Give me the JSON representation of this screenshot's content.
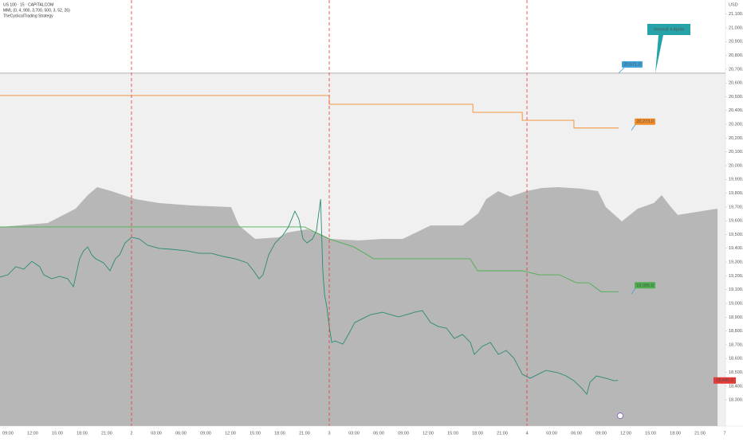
{
  "chart_data": {
    "type": "line",
    "title": "US 100 · 15 · CAPITALCOM",
    "subtitle": "MML (0, 4, 900, 3,700, 500, 3, 52, 26)",
    "strategy": "TheCyclicalTrading Strategy",
    "currency": "USD",
    "xlim": [
      -0.32,
      29.03
    ],
    "ylim": [
      18110,
      21202
    ],
    "xticks": [
      {
        "value": 0,
        "label": "09:00"
      },
      {
        "value": 1,
        "label": "12:00"
      },
      {
        "value": 2,
        "label": "15:00"
      },
      {
        "value": 3,
        "label": "18:00"
      },
      {
        "value": 4,
        "label": "21:00"
      },
      {
        "value": 5,
        "label": "2"
      },
      {
        "value": 6,
        "label": "03:00"
      },
      {
        "value": 7,
        "label": "06:00"
      },
      {
        "value": 8,
        "label": "09:00"
      },
      {
        "value": 9,
        "label": "12:00"
      },
      {
        "value": 10,
        "label": "15:00"
      },
      {
        "value": 11,
        "label": "18:00"
      },
      {
        "value": 12,
        "label": "21:00"
      },
      {
        "value": 13,
        "label": "3"
      },
      {
        "value": 14,
        "label": "03:00"
      },
      {
        "value": 15,
        "label": "06:00"
      },
      {
        "value": 16,
        "label": "09:00"
      },
      {
        "value": 17,
        "label": "12:00"
      },
      {
        "value": 18,
        "label": "15:00"
      },
      {
        "value": 19,
        "label": "18:00"
      },
      {
        "value": 20,
        "label": "21:00"
      },
      {
        "value": 21,
        "label": "4"
      },
      {
        "value": 22,
        "label": "03:00"
      },
      {
        "value": 23,
        "label": "06:00"
      },
      {
        "value": 24,
        "label": "09:00"
      },
      {
        "value": 25,
        "label": "12:00"
      },
      {
        "value": 26,
        "label": "15:00"
      },
      {
        "value": 27,
        "label": "18:00"
      },
      {
        "value": 28,
        "label": "21:00"
      },
      {
        "value": 29,
        "label": "7"
      }
    ],
    "yticks": [
      {
        "value": 18300,
        "label": "18,300.0"
      },
      {
        "value": 18400,
        "label": "18,400.0"
      },
      {
        "value": 18500,
        "label": "18,500.0"
      },
      {
        "value": 18600,
        "label": "18,600.0"
      },
      {
        "value": 18700,
        "label": "18,700.0"
      },
      {
        "value": 18800,
        "label": "18,800.0"
      },
      {
        "value": 18900,
        "label": "18,900.0"
      },
      {
        "value": 19000,
        "label": "19,000.0"
      },
      {
        "value": 19100,
        "label": "19,100.0"
      },
      {
        "value": 19200,
        "label": "19,200.0"
      },
      {
        "value": 19300,
        "label": "19,300.0"
      },
      {
        "value": 19400,
        "label": "19,400.0"
      },
      {
        "value": 19500,
        "label": "19,500.0"
      },
      {
        "value": 19600,
        "label": "19,600.0"
      },
      {
        "value": 19700,
        "label": "19,700.0"
      },
      {
        "value": 19800,
        "label": "19,800.0"
      },
      {
        "value": 19900,
        "label": "19,900.0"
      },
      {
        "value": 20000,
        "label": "20,000.0"
      },
      {
        "value": 20100,
        "label": "20,100.0"
      },
      {
        "value": 20200,
        "label": "20,200.0"
      },
      {
        "value": 20300,
        "label": "20,300.0"
      },
      {
        "value": 20400,
        "label": "20,400.0"
      },
      {
        "value": 20500,
        "label": "20,500.0"
      },
      {
        "value": 20600,
        "label": "20,600.0"
      },
      {
        "value": 20700,
        "label": "20,700.0"
      },
      {
        "value": 20800,
        "label": "20,800.0"
      },
      {
        "value": 20900,
        "label": "20,900.0"
      },
      {
        "value": 21000,
        "label": "21,000.0"
      },
      {
        "value": 21100,
        "label": "21,100.0"
      }
    ],
    "hline": {
      "value": 20671,
      "label": "20,671.0",
      "color": "#3aa0d8"
    },
    "annotation": "Venerdì 4 Aprile",
    "series": [
      {
        "type": "area",
        "color": "#b7b7b7",
        "x": [
          -0.32,
          1.61,
          2.74,
          3.23,
          3.61,
          4.19,
          5.16,
          6.13,
          7.42,
          9.03,
          9.35,
          10,
          10.97,
          11.29,
          12.1,
          12.58,
          13.06,
          14.19,
          15.16,
          15.97,
          17.1,
          18.39,
          19.03,
          19.35,
          19.84,
          20.32,
          20.97,
          21.61,
          22.26,
          23.23,
          23.87,
          24.19,
          24.84,
          25.48,
          26.13,
          26.45,
          26.77,
          27.1,
          28.06,
          28.71
        ],
        "values": [
          19555,
          19584,
          19688,
          19786,
          19844,
          19815,
          19757,
          19728,
          19711,
          19699,
          19566,
          19468,
          19480,
          19514,
          19538,
          19509,
          19468,
          19457,
          19468,
          19468,
          19566,
          19566,
          19653,
          19757,
          19815,
          19775,
          19815,
          19838,
          19844,
          19832,
          19815,
          19699,
          19595,
          19688,
          19728,
          19786,
          19711,
          19642,
          19670,
          19688
        ]
      },
      {
        "type": "line",
        "color": "#f28c28",
        "end_label": "20,273.0",
        "x": [
          -0.32,
          13,
          13,
          18.81,
          18.81,
          20.81,
          20.81,
          22.9,
          22.9,
          24.71
        ],
        "values": [
          20509,
          20509,
          20445,
          20445,
          20387,
          20387,
          20329,
          20329,
          20273,
          20273
        ]
      },
      {
        "type": "line",
        "color": "#4caf50",
        "end_label": "19,085.0",
        "x": [
          -0.32,
          12,
          13,
          14,
          14.8,
          18.7,
          19,
          20.8,
          21.5,
          22.3,
          23,
          23.5,
          24,
          24.71
        ],
        "values": [
          19555,
          19555,
          19468,
          19410,
          19324,
          19324,
          19237,
          19237,
          19208,
          19208,
          19150,
          19150,
          19085,
          19085
        ]
      },
      {
        "type": "line",
        "color": "#2b8a74",
        "last_label": "18,441.0",
        "last_color": "#e53935",
        "x": [
          -0.32,
          0,
          0.32,
          0.65,
          0.97,
          1.29,
          1.45,
          1.77,
          2.1,
          2.42,
          2.65,
          2.9,
          3.06,
          3.23,
          3.39,
          3.55,
          3.87,
          4.13,
          4.35,
          4.52,
          4.74,
          5,
          5.32,
          5.65,
          6.13,
          6.61,
          7.26,
          7.74,
          8.23,
          8.71,
          9.19,
          9.68,
          9.94,
          10.16,
          10.32,
          10.55,
          10.81,
          11.13,
          11.35,
          11.61,
          11.77,
          11.94,
          12.1,
          12.32,
          12.48,
          12.65,
          12.74,
          12.81,
          12.9,
          13,
          13.1,
          13.23,
          13.55,
          13.81,
          14.03,
          14.35,
          14.68,
          15.16,
          15.48,
          15.81,
          16.13,
          16.45,
          16.77,
          17.1,
          17.42,
          17.74,
          18.06,
          18.39,
          18.71,
          18.87,
          19.19,
          19.52,
          19.84,
          20.16,
          20.48,
          20.81,
          21.13,
          21.45,
          21.77,
          22.26,
          22.58,
          22.9,
          23.23,
          23.42,
          23.55,
          23.81,
          24.19,
          24.52,
          24.68
        ],
        "values": [
          19191,
          19208,
          19266,
          19249,
          19306,
          19266,
          19208,
          19179,
          19197,
          19179,
          19121,
          19324,
          19381,
          19410,
          19353,
          19324,
          19295,
          19237,
          19324,
          19353,
          19439,
          19480,
          19468,
          19422,
          19399,
          19393,
          19381,
          19364,
          19364,
          19341,
          19324,
          19295,
          19237,
          19179,
          19208,
          19353,
          19439,
          19497,
          19555,
          19670,
          19613,
          19468,
          19439,
          19468,
          19526,
          19757,
          19237,
          19064,
          18977,
          18832,
          18717,
          18728,
          18705,
          18786,
          18861,
          18890,
          18919,
          18936,
          18919,
          18902,
          18919,
          18936,
          18948,
          18861,
          18832,
          18821,
          18746,
          18775,
          18717,
          18630,
          18688,
          18717,
          18630,
          18659,
          18601,
          18486,
          18457,
          18486,
          18514,
          18497,
          18474,
          18439,
          18382,
          18341,
          18428,
          18474,
          18457,
          18439,
          18441
        ]
      }
    ]
  }
}
